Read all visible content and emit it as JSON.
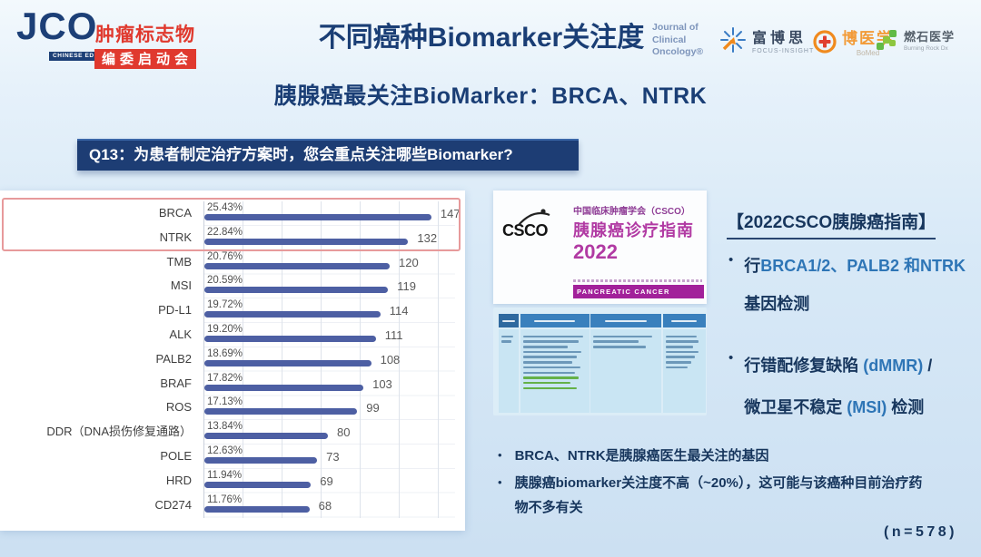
{
  "header": {
    "jco": {
      "logo": "JCO",
      "edition": "CHINESE EDITION",
      "line1": "肿瘤标志物",
      "line2": "编委启动会"
    },
    "title": "不同癌种Biomarker关注度",
    "journal": {
      "line1": "Journal of",
      "line2": "Clinical",
      "line3": "Oncology®"
    },
    "focus_insight": {
      "name": "富博思",
      "sub": "FOCUS-INSIGHT"
    },
    "bomed": {
      "name": "博医学",
      "sub": "BoMed"
    },
    "burning_rock": {
      "name": "燃石医学",
      "sub": "Burning Rock Dx"
    }
  },
  "subtitle": "胰腺癌最关注BioMarker：BRCA、NTRK",
  "question": "Q13：为患者制定治疗方案时，您会重点关注哪些Biomarker?",
  "chart_data": {
    "type": "bar",
    "orientation": "horizontal",
    "categories": [
      "BRCA",
      "NTRK",
      "TMB",
      "MSI",
      "PD-L1",
      "ALK",
      "PALB2",
      "BRAF",
      "ROS",
      "DDR（DNA损伤修复通路）",
      "POLE",
      "HRD",
      "CD274"
    ],
    "values": [
      147,
      132,
      120,
      119,
      114,
      111,
      108,
      103,
      99,
      80,
      73,
      69,
      68
    ],
    "percent_labels": [
      "25.43%",
      "22.84%",
      "20.76%",
      "20.59%",
      "19.72%",
      "19.20%",
      "18.69%",
      "17.82%",
      "17.13%",
      "13.84%",
      "12.63%",
      "11.94%",
      "11.76%"
    ],
    "title": "",
    "xlabel": "",
    "ylabel": "",
    "xlim": [
      0,
      160
    ],
    "grid": true,
    "bar_color": "#4d5fa3",
    "highlight_rows": [
      "BRCA",
      "NTRK"
    ],
    "highlight_border_color": "#e79a9b"
  },
  "csco_panel": {
    "logo": "CSCO",
    "org": "中国临床肿瘤学会（CSCO）",
    "title": "胰腺癌诊疗指南",
    "year": "2022",
    "banner": "PANCREATIC CANCER",
    "accent_color": "#a2219a"
  },
  "guide_panel": {
    "heading": "【2022CSCO胰腺癌指南】",
    "bullet1": {
      "prefix": "行",
      "genes": "BRCA1/2、PALB2 和NTRK",
      "line2": "基因检测"
    },
    "bullet2": {
      "p1": "行错配修复缺陷 ",
      "p2": "(dMMR)",
      "p3": " /",
      "p4": "微卫星不稳定 ",
      "p5": "(MSI)",
      "p6": " 检测"
    },
    "gene_color": "#2e75b6"
  },
  "findings": {
    "bullet1": "BRCA、NTRK是胰腺癌医生最关注的基因",
    "bullet2": "胰腺癌biomarker关注度不高（~20%），这可能与该癌种目前治疗药物不多有关"
  },
  "footer": {
    "sample_size": "(n=578)"
  },
  "colors": {
    "navy": "#17365d",
    "title_blue": "#1a3e75",
    "question_bg": "#1d3d74",
    "red_accent": "#e0392e"
  }
}
